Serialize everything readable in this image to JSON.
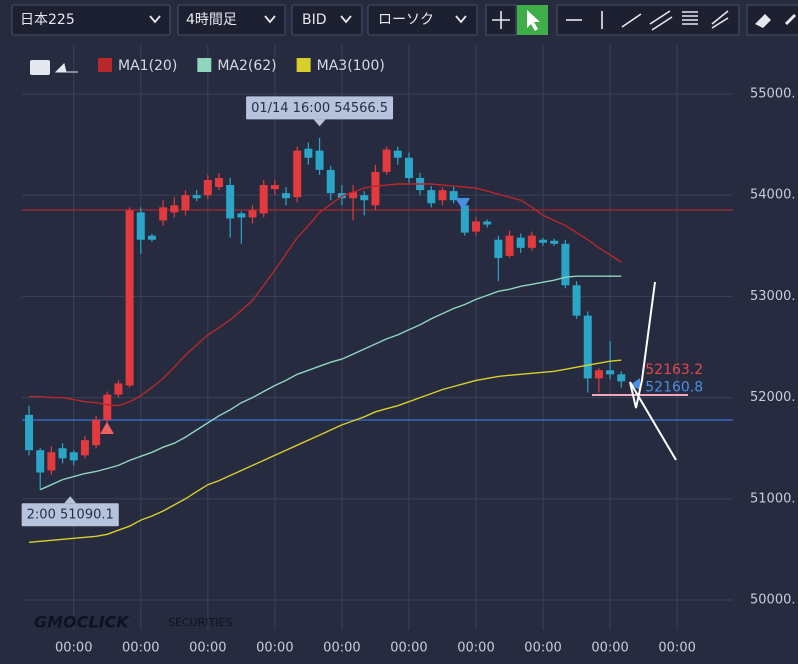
{
  "toolbar": {
    "symbol": "日本225",
    "timeframe": "4時間足",
    "price_type": "BID",
    "chart_style": "ローソク"
  },
  "watermark": {
    "brand": "GMOCLICK",
    "suffix": "SECURITIES"
  },
  "chart_data": {
    "type": "candlestick",
    "up_color": "#e23a3e",
    "down_color": "#2ba6c9",
    "open": [
      51830,
      51480,
      51280,
      51500,
      51460,
      51430,
      51530,
      51780,
      52030,
      52120,
      53830,
      53600,
      53750,
      53830,
      53850,
      54000,
      54000,
      54080,
      54100,
      53820,
      53780,
      53820,
      54060,
      54020,
      53980,
      54460,
      54440,
      54250,
      54020,
      53970,
      54000,
      53900,
      54230,
      54440,
      54370,
      54170,
      54050,
      53950,
      54040,
      53900,
      53640,
      53740,
      53560,
      53400,
      53580,
      53480,
      53560,
      53550,
      53520,
      53110,
      52810,
      52190,
      52270,
      52230
    ],
    "high": [
      51920,
      51500,
      51520,
      51550,
      51480,
      51620,
      51820,
      52060,
      52170,
      53880,
      53880,
      53620,
      53950,
      53980,
      54050,
      54050,
      54200,
      54220,
      54170,
      53840,
      53900,
      54150,
      54150,
      54080,
      54480,
      54520,
      54566.5,
      54290,
      54100,
      54100,
      54040,
      54300,
      54480,
      54480,
      54420,
      54220,
      54090,
      54080,
      54080,
      53950,
      53780,
      53760,
      53600,
      53650,
      53620,
      53640,
      53580,
      53570,
      53560,
      53150,
      52850,
      52290,
      52560,
      52260
    ],
    "low": [
      51430,
      51090.1,
      51240,
      51350,
      51330,
      51400,
      51500,
      51750,
      52000,
      52100,
      53420,
      53540,
      53700,
      53780,
      53800,
      53940,
      53960,
      54050,
      53580,
      53520,
      53720,
      53780,
      54000,
      53900,
      53930,
      54300,
      54200,
      53950,
      53900,
      53750,
      53800,
      53850,
      54200,
      54300,
      54120,
      54000,
      53880,
      53900,
      53920,
      53600,
      53600,
      53680,
      53150,
      53380,
      53430,
      53450,
      53500,
      53500,
      53080,
      52780,
      52050,
      52050,
      52180,
      52100
    ],
    "close": [
      51480,
      51260,
      51460,
      51400,
      51380,
      51580,
      51780,
      52030,
      52140,
      53850,
      53560,
      53560,
      53880,
      53900,
      54000,
      53970,
      54150,
      54170,
      53770,
      53780,
      53850,
      54100,
      54100,
      53970,
      54440,
      54370,
      54250,
      54020,
      53970,
      54030,
      53950,
      54230,
      54450,
      54370,
      54170,
      54050,
      53920,
      54050,
      53950,
      53630,
      53740,
      53710,
      53380,
      53600,
      53480,
      53600,
      53530,
      53520,
      53110,
      52810,
      52190,
      52270,
      52230,
      52160.8
    ],
    "series": [
      {
        "name": "MA1(20)",
        "color": "#b8272a",
        "values": [
          52010,
          52010,
          52000,
          52000,
          51980,
          51960,
          51950,
          51930,
          51920,
          51960,
          52020,
          52100,
          52190,
          52300,
          52420,
          52520,
          52620,
          52690,
          52770,
          52860,
          52960,
          53110,
          53260,
          53420,
          53580,
          53700,
          53830,
          53910,
          53990,
          54030,
          54070,
          54090,
          54100,
          54110,
          54110,
          54110,
          54110,
          54100,
          54090,
          54080,
          54070,
          54040,
          54010,
          53980,
          53950,
          53880,
          53800,
          53750,
          53700,
          53630,
          53560,
          53480,
          53410,
          53340
        ]
      },
      {
        "name": "MA2(62)",
        "color": "#8fd6bd",
        "values": [
          null,
          51090,
          51140,
          51190,
          51220,
          51250,
          51270,
          51300,
          51330,
          51380,
          51420,
          51460,
          51510,
          51550,
          51610,
          51680,
          51750,
          51820,
          51880,
          51950,
          52000,
          52060,
          52120,
          52170,
          52230,
          52270,
          52310,
          52350,
          52380,
          52430,
          52480,
          52530,
          52580,
          52620,
          52670,
          52720,
          52780,
          52830,
          52880,
          52920,
          52970,
          53010,
          53050,
          53070,
          53100,
          53120,
          53140,
          53160,
          53190,
          53200,
          53200,
          53200,
          53200,
          53200
        ]
      },
      {
        "name": "MA3(100)",
        "color": "#d8cf2a",
        "values": [
          50570,
          50580,
          50590,
          50600,
          50610,
          50620,
          50630,
          50650,
          50690,
          50730,
          50790,
          50830,
          50880,
          50940,
          51000,
          51070,
          51140,
          51180,
          51230,
          51280,
          51330,
          51380,
          51430,
          51480,
          51530,
          51580,
          51630,
          51680,
          51730,
          51770,
          51810,
          51860,
          51890,
          51920,
          51960,
          52000,
          52040,
          52080,
          52110,
          52140,
          52170,
          52190,
          52210,
          52220,
          52230,
          52240,
          52250,
          52260,
          52280,
          52300,
          52320,
          52340,
          52360,
          52370
        ]
      }
    ],
    "hlines": [
      {
        "value": 53854,
        "color": "#b8272a"
      },
      {
        "value": 51779,
        "color": "#3a72d6"
      }
    ],
    "ask": 52163.2,
    "bid": 52160.8,
    "high_annotation": "01/14 16:00",
    "low_annotation": "2:00",
    "xlim": [
      -0.63,
      63
    ],
    "xticks": [
      {
        "value": 4,
        "label": "00:00"
      },
      {
        "value": 10,
        "label": "00:00"
      },
      {
        "value": 16,
        "label": "00:00"
      },
      {
        "value": 22,
        "label": "00:00"
      },
      {
        "value": 28,
        "label": "00:00"
      },
      {
        "value": 34,
        "label": "00:00"
      },
      {
        "value": 40,
        "label": "00:00"
      },
      {
        "value": 46,
        "label": "00:00"
      },
      {
        "value": 52,
        "label": "00:00"
      },
      {
        "value": 58,
        "label": "00:00"
      }
    ],
    "ylim": [
      49704,
      55632
    ],
    "yticks": [
      {
        "value": 50000,
        "label": "50000."
      },
      {
        "value": 51000,
        "label": "51000."
      },
      {
        "value": 52000,
        "label": "52000."
      },
      {
        "value": 53000,
        "label": "53000."
      },
      {
        "value": 54000,
        "label": "54000."
      },
      {
        "value": 55000,
        "label": "55000."
      }
    ],
    "grid": true
  }
}
